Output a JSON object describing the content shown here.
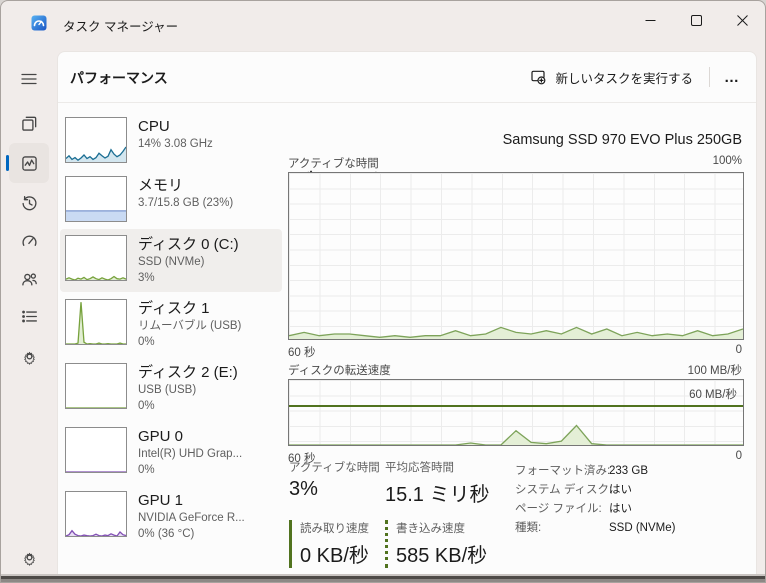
{
  "titlebar": {
    "title": "タスク マネージャー"
  },
  "command_bar": {
    "page_title": "パフォーマンス",
    "run_new_task": "新しいタスクを実行する",
    "more": "…"
  },
  "sidebar": {
    "items": [
      {
        "id": "processes",
        "icon": "processes-icon",
        "selected": false
      },
      {
        "id": "performance",
        "icon": "performance-icon",
        "selected": true
      },
      {
        "id": "app-history",
        "icon": "history-icon",
        "selected": false
      },
      {
        "id": "startup-apps",
        "icon": "gauge-icon",
        "selected": false
      },
      {
        "id": "users",
        "icon": "users-icon",
        "selected": false
      },
      {
        "id": "details",
        "icon": "list-icon",
        "selected": false
      },
      {
        "id": "services",
        "icon": "cog-icon",
        "selected": false
      }
    ],
    "footer": {
      "id": "settings",
      "icon": "gear-icon"
    }
  },
  "perf_list": [
    {
      "title": "CPU",
      "subtitles": [
        "14%  3.08 GHz"
      ],
      "selected": false,
      "spark": {
        "stroke": "#1a6e93",
        "fill": "#d3e6ef",
        "max": 100,
        "values": [
          8,
          14,
          6,
          10,
          4,
          9,
          16,
          8,
          12,
          6,
          10,
          20,
          14,
          9,
          13,
          28,
          18,
          12,
          16,
          24,
          34
        ]
      }
    },
    {
      "title": "メモリ",
      "subtitles": [
        "3.7/15.8 GB (23%)"
      ],
      "selected": false,
      "spark": {
        "stroke": "#7b97cf",
        "fill": "#c9daf3",
        "max": 100,
        "values": [
          23,
          23,
          23,
          23,
          23,
          23,
          23,
          23,
          23,
          23,
          23,
          23,
          23,
          23,
          23,
          23,
          23,
          23,
          23,
          23,
          23
        ]
      }
    },
    {
      "title": "ディスク 0 (C:)",
      "subtitles": [
        "SSD (NVMe)",
        "3%"
      ],
      "selected": true,
      "spark": {
        "stroke": "#77a23d",
        "fill": "#e2eed3",
        "max": 100,
        "values": [
          2,
          5,
          2,
          0,
          4,
          2,
          6,
          1,
          3,
          7,
          3,
          1,
          5,
          2,
          0,
          3,
          8,
          3,
          2,
          5,
          2
        ]
      }
    },
    {
      "title": "ディスク 1",
      "subtitles": [
        "リムーバブル (USB)",
        "0%"
      ],
      "selected": false,
      "spark": {
        "stroke": "#77a23d",
        "fill": "#e2eed3",
        "max": 100,
        "values": [
          0,
          0,
          0,
          0,
          2,
          95,
          4,
          0,
          1,
          0,
          0,
          2,
          0,
          0,
          1,
          0,
          0,
          0,
          2,
          0,
          0
        ]
      }
    },
    {
      "title": "ディスク 2 (E:)",
      "subtitles": [
        "USB (USB)",
        "0%"
      ],
      "selected": false,
      "spark": {
        "stroke": "#77a23d",
        "fill": "#e2eed3",
        "max": 100,
        "values": [
          0,
          0,
          0,
          0,
          0,
          0,
          0,
          0,
          0,
          0,
          0,
          0,
          0,
          0,
          0,
          0,
          0,
          0,
          0,
          0,
          0
        ]
      }
    },
    {
      "title": "GPU 0",
      "subtitles": [
        "Intel(R) UHD Grap...",
        "0%"
      ],
      "selected": false,
      "spark": {
        "stroke": "#8250b4",
        "fill": "#e7ddf4",
        "max": 100,
        "values": [
          0,
          0,
          0,
          0,
          0,
          0,
          0,
          0,
          0,
          0,
          0,
          0,
          0,
          0,
          0,
          0,
          0,
          0,
          0,
          0,
          0
        ]
      }
    },
    {
      "title": "GPU 1",
      "subtitles": [
        "NVIDIA GeForce R...",
        "0% (36 °C)"
      ],
      "selected": false,
      "spark": {
        "stroke": "#8250b4",
        "fill": "#e7ddf4",
        "max": 100,
        "values": [
          0,
          3,
          12,
          4,
          1,
          0,
          2,
          1,
          0,
          1,
          4,
          1,
          0,
          2,
          1,
          5,
          2,
          0,
          9,
          3,
          1
        ]
      }
    }
  ],
  "main": {
    "title": "ディスク 0 (C:)",
    "subtitle": "Samsung SSD 970 EVO Plus 250GB",
    "chart_active": {
      "type": "area",
      "label": "アクティブな時間",
      "max_label": "100%",
      "x_left": "60 秒",
      "x_right": "0",
      "ylim": [
        0,
        100
      ],
      "stroke": "#7da35a",
      "fill": "#e4efd6",
      "values": [
        2,
        4,
        2,
        3,
        3,
        2,
        1,
        2,
        1,
        2,
        2,
        5,
        2,
        3,
        7,
        4,
        3,
        5,
        3,
        7,
        3,
        6,
        2,
        4,
        2,
        3,
        2,
        5,
        2,
        3,
        6
      ]
    },
    "chart_transfer": {
      "type": "area",
      "label": "ディスクの転送速度",
      "max_label": "100 MB/秒",
      "x_left": "60 秒",
      "x_right": "0",
      "ylim": [
        0,
        100
      ],
      "stroke": "#7da35a",
      "fill": "#e4efd6",
      "scale_line": {
        "value": 60,
        "label": "60 MB/秒",
        "color": "#51731f"
      },
      "values": [
        0,
        0,
        0,
        0,
        0,
        0,
        0,
        0,
        0,
        0,
        0,
        0,
        3,
        0,
        0,
        22,
        4,
        2,
        6,
        30,
        2,
        0,
        0,
        0,
        0,
        0,
        0,
        0,
        0,
        0,
        0
      ]
    },
    "stats": [
      {
        "label": "アクティブな時間",
        "value": "3%",
        "legend": "none"
      },
      {
        "label": "平均応答時間",
        "value": "15.1 ミリ秒",
        "legend": "none"
      },
      {
        "label": "読み取り速度",
        "value": "0 KB/秒",
        "legend": "solid"
      },
      {
        "label": "書き込み速度",
        "value": "585 KB/秒",
        "legend": "dotted"
      }
    ],
    "details": [
      {
        "label": "フォーマット済み:",
        "value": "233 GB"
      },
      {
        "label": "システム ディスク:",
        "value": "はい"
      },
      {
        "label": "ページ ファイル:",
        "value": "はい"
      },
      {
        "label": "種類:",
        "value": "SSD (NVMe)"
      }
    ]
  },
  "colors": {
    "accent": "#0067c0",
    "disk_green": "#7da35a",
    "scale_green": "#51731f"
  }
}
